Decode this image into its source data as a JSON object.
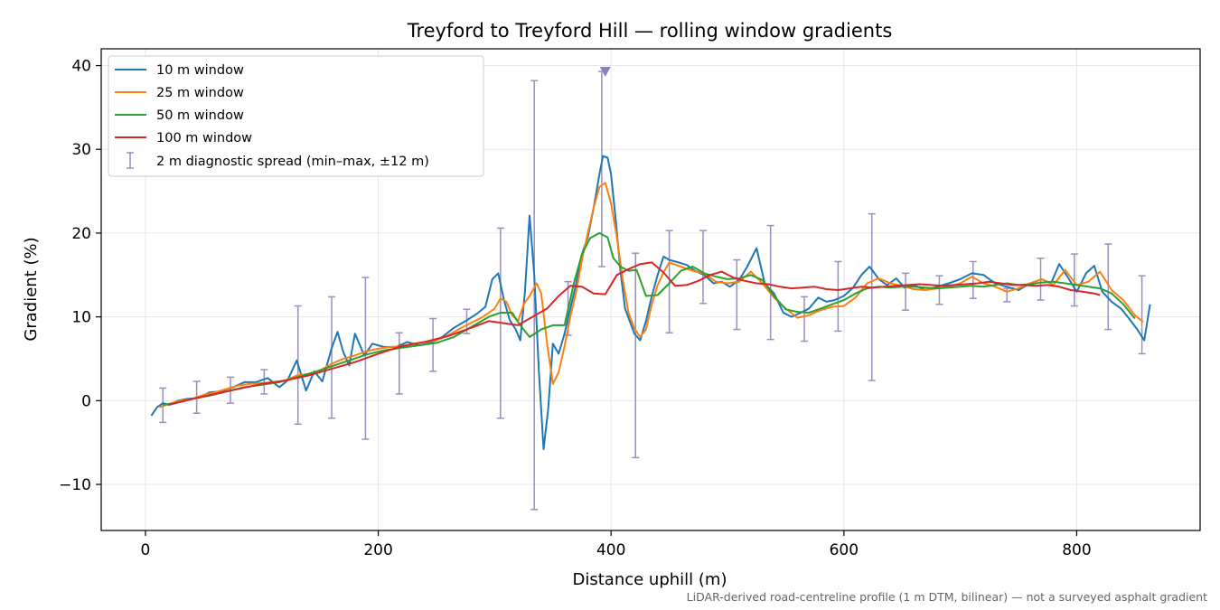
{
  "chart_data": {
    "type": "line",
    "title": "Treyford to Treyford Hill — rolling window gradients",
    "xlabel": "Distance uphill (m)",
    "ylabel": "Gradient (%)",
    "footnote": "LiDAR-derived road-centreline profile (1 m DTM, bilinear) — not a surveyed asphalt gradient",
    "xlim": [
      -38,
      906
    ],
    "ylim": [
      -15.5,
      42
    ],
    "xticks": [
      0,
      200,
      400,
      600,
      800
    ],
    "xtick_labels": [
      "0",
      "200",
      "400",
      "600",
      "800"
    ],
    "yticks": [
      -10,
      0,
      10,
      20,
      30,
      40
    ],
    "ytick_labels": [
      "−10",
      "0",
      "10",
      "20",
      "30",
      "40"
    ],
    "grid": true,
    "legend_position": "top-left",
    "series": [
      {
        "name": "10 m window",
        "color": "#1f77b4",
        "x": [
          5,
          10,
          15,
          20,
          28,
          35,
          45,
          55,
          65,
          75,
          85,
          95,
          105,
          115,
          122,
          130,
          138,
          145,
          152,
          160,
          165,
          170,
          175,
          180,
          188,
          195,
          205,
          215,
          225,
          235,
          245,
          255,
          265,
          275,
          285,
          292,
          298,
          303,
          308,
          313,
          318,
          322,
          326,
          330,
          334,
          338,
          342,
          346,
          350,
          355,
          360,
          365,
          370,
          375,
          380,
          385,
          390,
          393,
          397,
          400,
          404,
          408,
          412,
          416,
          420,
          425,
          430,
          435,
          440,
          445,
          450,
          458,
          465,
          472,
          480,
          488,
          495,
          502,
          510,
          517,
          525,
          532,
          540,
          548,
          555,
          563,
          570,
          578,
          585,
          592,
          600,
          608,
          615,
          622,
          630,
          637,
          645,
          652,
          660,
          670,
          680,
          690,
          700,
          710,
          720,
          730,
          740,
          750,
          760,
          770,
          778,
          785,
          793,
          800,
          808,
          815,
          822,
          830,
          838,
          845,
          852,
          858,
          863
        ],
        "values": [
          -1.8,
          -0.8,
          -0.3,
          -0.5,
          0,
          0.2,
          0.3,
          1,
          1.1,
          1.6,
          2.2,
          2.2,
          2.7,
          1.6,
          2.4,
          4.8,
          1.2,
          3.5,
          2.3,
          6.3,
          8.2,
          5.8,
          4.2,
          8.0,
          5.4,
          6.8,
          6.4,
          6.4,
          7.0,
          6.6,
          6.9,
          7.6,
          8.7,
          9.5,
          10.4,
          11.2,
          14.5,
          15.2,
          12.0,
          9.6,
          8.5,
          7.2,
          13,
          22.1,
          15.0,
          3.5,
          -5.8,
          -1.0,
          6.8,
          5.6,
          8.0,
          11.0,
          14.0,
          17.5,
          19.5,
          23.0,
          27.0,
          29.2,
          29.0,
          27.0,
          21.5,
          15.5,
          11.0,
          9.5,
          8.0,
          7.2,
          9.5,
          12.5,
          15.0,
          17.2,
          16.8,
          16.5,
          16.2,
          15.5,
          15.0,
          14.0,
          14.2,
          13.6,
          14.4,
          16.0,
          18.2,
          14.0,
          12.8,
          10.5,
          10.0,
          10.5,
          11.0,
          12.3,
          11.8,
          12.0,
          12.5,
          13.5,
          15.0,
          16.0,
          14.5,
          13.8,
          14.6,
          13.5,
          13.8,
          13.2,
          13.6,
          14.0,
          14.5,
          15.2,
          15.0,
          14.0,
          13.6,
          13.2,
          14.0,
          14.5,
          14.0,
          16.3,
          14.6,
          13.0,
          15.2,
          16.1,
          13.0,
          11.8,
          11.0,
          9.8,
          8.5,
          7.2,
          11.5
        ]
      },
      {
        "name": "25 m window",
        "color": "#ff7f0e",
        "x": [
          12,
          20,
          30,
          40,
          50,
          60,
          70,
          80,
          90,
          100,
          110,
          120,
          130,
          140,
          150,
          160,
          170,
          180,
          190,
          200,
          210,
          220,
          230,
          240,
          250,
          260,
          270,
          280,
          290,
          300,
          305,
          310,
          315,
          320,
          325,
          330,
          336,
          340,
          345,
          350,
          355,
          360,
          365,
          370,
          375,
          380,
          385,
          390,
          395,
          400,
          405,
          410,
          415,
          420,
          425,
          430,
          435,
          440,
          445,
          450,
          460,
          470,
          480,
          490,
          500,
          510,
          520,
          530,
          540,
          550,
          560,
          570,
          580,
          590,
          600,
          610,
          620,
          630,
          640,
          650,
          660,
          670,
          680,
          690,
          700,
          710,
          720,
          730,
          740,
          750,
          760,
          770,
          780,
          790,
          800,
          810,
          820,
          830,
          840,
          850,
          857
        ],
        "values": [
          -0.8,
          -0.4,
          0,
          0.2,
          0.7,
          1.0,
          1.4,
          1.8,
          2.0,
          2.1,
          2.2,
          2.4,
          3.0,
          3.2,
          3.6,
          4.4,
          5.0,
          5.4,
          5.9,
          6.2,
          6.4,
          6.5,
          6.8,
          7.0,
          7.2,
          7.8,
          8.6,
          9.3,
          10.0,
          11.0,
          12.2,
          11.8,
          10.2,
          9.5,
          11.5,
          12.5,
          14.0,
          12.8,
          6.8,
          2.0,
          3.4,
          6.5,
          10.0,
          13.0,
          16.8,
          20.0,
          23.0,
          25.5,
          26.0,
          23.5,
          19.5,
          14.5,
          10.5,
          8.6,
          7.6,
          8.5,
          11.5,
          13.8,
          15.3,
          16.5,
          16.0,
          15.5,
          15.2,
          14.2,
          14.0,
          14.2,
          15.4,
          14.0,
          12.3,
          11.0,
          9.9,
          10.2,
          10.8,
          11.2,
          11.3,
          12.3,
          14.0,
          14.6,
          14.0,
          13.7,
          13.3,
          13.2,
          13.4,
          13.6,
          14.0,
          14.8,
          14.0,
          13.6,
          13.0,
          13.4,
          14.0,
          14.5,
          13.8,
          15.6,
          13.8,
          14.2,
          15.4,
          13.2,
          12.0,
          10.2,
          9.4
        ]
      },
      {
        "name": "50 m window",
        "color": "#2ca02c",
        "x": [
          15,
          25,
          40,
          55,
          70,
          85,
          100,
          115,
          130,
          145,
          160,
          175,
          190,
          205,
          220,
          235,
          250,
          265,
          280,
          295,
          305,
          315,
          322,
          330,
          340,
          350,
          360,
          368,
          375,
          382,
          390,
          397,
          402,
          408,
          415,
          422,
          430,
          440,
          450,
          460,
          470,
          480,
          490,
          500,
          510,
          520,
          530,
          540,
          550,
          560,
          570,
          580,
          590,
          600,
          610,
          620,
          630,
          640,
          650,
          660,
          670,
          680,
          690,
          700,
          710,
          720,
          730,
          740,
          750,
          760,
          770,
          780,
          790,
          800,
          810,
          820,
          830,
          840,
          850
        ],
        "values": [
          -0.5,
          -0.3,
          0.2,
          0.6,
          1.1,
          1.6,
          1.9,
          2.2,
          2.8,
          3.4,
          4.1,
          4.8,
          5.5,
          6.0,
          6.3,
          6.6,
          6.9,
          7.6,
          8.8,
          10.0,
          10.5,
          10.5,
          9.0,
          7.6,
          8.5,
          9.0,
          9.0,
          14.0,
          17.5,
          19.4,
          20.0,
          19.5,
          17.0,
          16.0,
          15.5,
          15.6,
          12.5,
          12.6,
          14.0,
          15.5,
          16.0,
          15.2,
          14.8,
          14.5,
          14.6,
          15.0,
          14.4,
          12.5,
          10.9,
          10.6,
          10.5,
          11.0,
          11.5,
          12.0,
          12.8,
          13.4,
          13.6,
          13.5,
          13.6,
          13.6,
          13.5,
          13.4,
          13.5,
          13.6,
          13.7,
          13.6,
          13.8,
          14.0,
          13.8,
          13.9,
          14.1,
          14.2,
          14.0,
          13.8,
          13.6,
          13.4,
          12.8,
          11.5,
          9.8
        ]
      },
      {
        "name": "100 m window",
        "color": "#d62728",
        "x": [
          20,
          40,
          60,
          80,
          100,
          120,
          140,
          160,
          180,
          200,
          220,
          240,
          260,
          280,
          295,
          305,
          320,
          335,
          345,
          355,
          365,
          375,
          385,
          395,
          405,
          415,
          425,
          435,
          445,
          455,
          465,
          475,
          485,
          495,
          505,
          515,
          525,
          535,
          545,
          555,
          565,
          575,
          585,
          595,
          605,
          615,
          625,
          635,
          645,
          655,
          665,
          675,
          685,
          695,
          705,
          715,
          725,
          735,
          745,
          755,
          765,
          775,
          785,
          795,
          805,
          815,
          820
        ],
        "values": [
          -0.5,
          0.2,
          0.8,
          1.4,
          2.0,
          2.4,
          3.0,
          3.8,
          4.6,
          5.6,
          6.5,
          7.0,
          7.7,
          8.7,
          9.5,
          9.3,
          9.0,
          10.2,
          11.0,
          12.5,
          13.7,
          13.6,
          12.8,
          12.7,
          15.0,
          15.7,
          16.3,
          16.5,
          15.3,
          13.7,
          13.8,
          14.3,
          15.0,
          15.4,
          14.7,
          14.3,
          14.0,
          13.9,
          13.6,
          13.4,
          13.5,
          13.6,
          13.3,
          13.2,
          13.4,
          13.6,
          13.5,
          13.6,
          13.7,
          13.8,
          13.9,
          13.8,
          13.7,
          13.8,
          13.9,
          14.0,
          14.2,
          14.0,
          13.8,
          13.8,
          13.7,
          13.8,
          13.6,
          13.2,
          13.0,
          12.8,
          12.6
        ]
      }
    ],
    "error_bars": {
      "name": "2 m diagnostic spread (min–max, ±12 m)",
      "color": "#9a8ebf",
      "x": [
        15,
        44,
        73,
        102,
        131,
        160,
        189,
        218,
        247,
        276,
        305,
        334,
        363,
        392,
        421,
        450,
        479,
        508,
        537,
        566,
        595,
        624,
        653,
        682,
        711,
        740,
        769,
        798,
        827,
        856
      ],
      "low": [
        -2.6,
        -1.5,
        -0.3,
        0.8,
        -2.8,
        -2.1,
        -4.6,
        0.8,
        3.5,
        8.0,
        -2.1,
        -13.0,
        7.8,
        16.0,
        -6.8,
        8.1,
        11.6,
        8.5,
        7.3,
        7.1,
        8.3,
        2.4,
        10.8,
        11.5,
        12.2,
        11.8,
        12.0,
        11.3,
        8.5,
        5.6
      ],
      "high": [
        1.5,
        2.3,
        2.8,
        3.7,
        11.3,
        12.4,
        14.7,
        8.1,
        9.8,
        10.9,
        20.6,
        38.2,
        14.2,
        39.3,
        17.6,
        20.3,
        20.3,
        16.8,
        20.9,
        12.4,
        16.6,
        22.3,
        15.2,
        14.9,
        16.6,
        13.4,
        17.0,
        17.5,
        18.7,
        14.9
      ],
      "clipped_x": 395,
      "clipped_y": 39.3
    }
  }
}
